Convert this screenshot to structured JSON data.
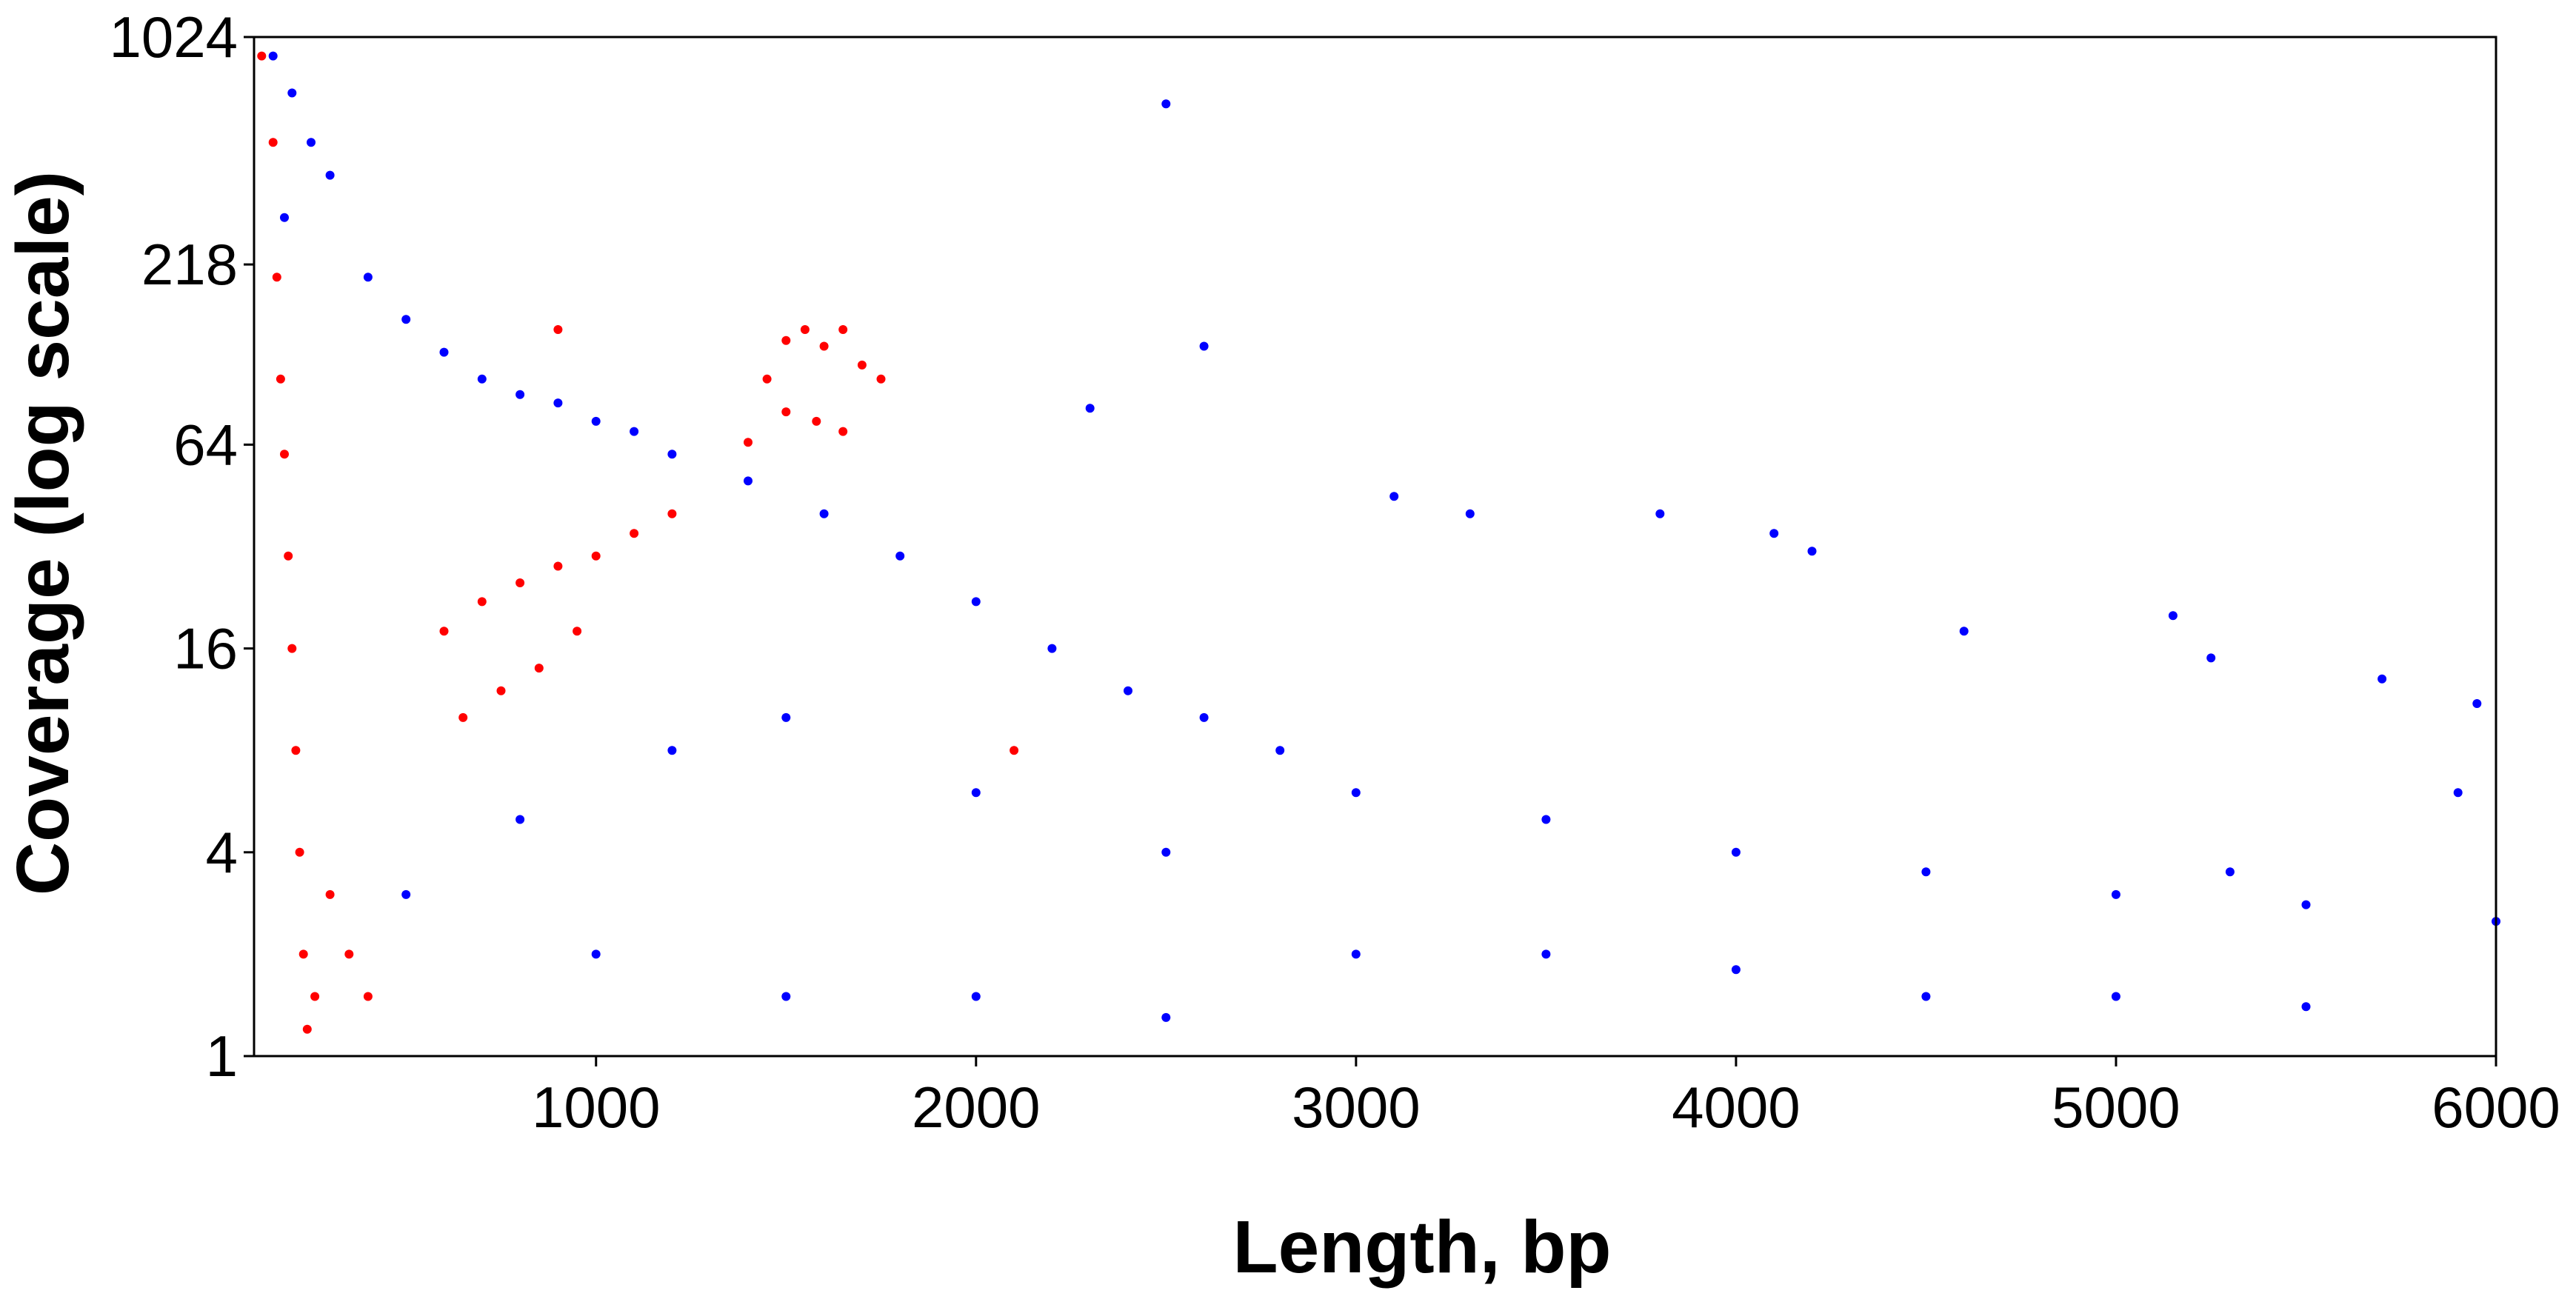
{
  "chart_data": {
    "type": "scatter",
    "xlabel": "Length, bp",
    "ylabel": "Coverage (log scale)",
    "x_ticks": [
      1000,
      2000,
      3000,
      4000,
      5000,
      6000
    ],
    "y_ticks": [
      1,
      4,
      16,
      64,
      218,
      1024
    ],
    "y_tick_labels": [
      "1",
      "4",
      "16",
      "64",
      "218",
      "1024"
    ],
    "xlim": [
      100,
      6000
    ],
    "ylim": [
      1,
      1024
    ],
    "y_scale": "log",
    "grid": false,
    "legend": "none",
    "series": [
      {
        "color": "#0000ff",
        "points": [
          [
            150,
            900
          ],
          [
            200,
            700
          ],
          [
            250,
            500
          ],
          [
            300,
            400
          ],
          [
            180,
            300
          ],
          [
            400,
            200
          ],
          [
            500,
            150
          ],
          [
            600,
            120
          ],
          [
            700,
            100
          ],
          [
            800,
            90
          ],
          [
            900,
            85
          ],
          [
            1000,
            75
          ],
          [
            1100,
            70
          ],
          [
            1200,
            60
          ],
          [
            1400,
            50
          ],
          [
            1600,
            40
          ],
          [
            1800,
            30
          ],
          [
            2000,
            22
          ],
          [
            2200,
            16
          ],
          [
            2400,
            12
          ],
          [
            2600,
            10
          ],
          [
            2800,
            8
          ],
          [
            3000,
            6
          ],
          [
            3500,
            5
          ],
          [
            4000,
            4
          ],
          [
            4500,
            3.5
          ],
          [
            5000,
            3
          ],
          [
            5500,
            2.8
          ],
          [
            6000,
            2.5
          ],
          [
            1500,
            10
          ],
          [
            2000,
            6
          ],
          [
            2500,
            4
          ],
          [
            3000,
            2
          ],
          [
            3500,
            2
          ],
          [
            4000,
            1.8
          ],
          [
            4500,
            1.5
          ],
          [
            5000,
            1.5
          ],
          [
            5500,
            1.4
          ],
          [
            1000,
            2
          ],
          [
            1500,
            1.5
          ],
          [
            2000,
            1.5
          ],
          [
            2500,
            1.3
          ],
          [
            500,
            3
          ],
          [
            800,
            5
          ],
          [
            1200,
            8
          ],
          [
            2500,
            650
          ],
          [
            2600,
            125
          ],
          [
            2300,
            82
          ],
          [
            3100,
            45
          ],
          [
            3300,
            40
          ],
          [
            3800,
            40
          ],
          [
            4200,
            31
          ],
          [
            4100,
            35
          ],
          [
            4600,
            18
          ],
          [
            5150,
            20
          ],
          [
            5250,
            15
          ],
          [
            5700,
            13
          ],
          [
            5950,
            11
          ],
          [
            5900,
            6
          ],
          [
            5300,
            3.5
          ]
        ]
      },
      {
        "color": "#ff0000",
        "points": [
          [
            120,
            900
          ],
          [
            150,
            500
          ],
          [
            160,
            200
          ],
          [
            170,
            100
          ],
          [
            180,
            60
          ],
          [
            190,
            30
          ],
          [
            200,
            16
          ],
          [
            210,
            8
          ],
          [
            220,
            4
          ],
          [
            230,
            2
          ],
          [
            240,
            1.2
          ],
          [
            260,
            1.5
          ],
          [
            300,
            3
          ],
          [
            350,
            2
          ],
          [
            400,
            1.5
          ],
          [
            600,
            18
          ],
          [
            700,
            22
          ],
          [
            800,
            25
          ],
          [
            900,
            28
          ],
          [
            1000,
            30
          ],
          [
            1100,
            35
          ],
          [
            1200,
            40
          ],
          [
            650,
            10
          ],
          [
            750,
            12
          ],
          [
            850,
            14
          ],
          [
            950,
            18
          ],
          [
            1500,
            130
          ],
          [
            1550,
            140
          ],
          [
            1600,
            125
          ],
          [
            1650,
            140
          ],
          [
            1700,
            110
          ],
          [
            1750,
            100
          ],
          [
            1450,
            100
          ],
          [
            1500,
            80
          ],
          [
            1580,
            75
          ],
          [
            1650,
            70
          ],
          [
            1400,
            65
          ],
          [
            900,
            140
          ],
          [
            2100,
            8
          ]
        ]
      }
    ]
  }
}
